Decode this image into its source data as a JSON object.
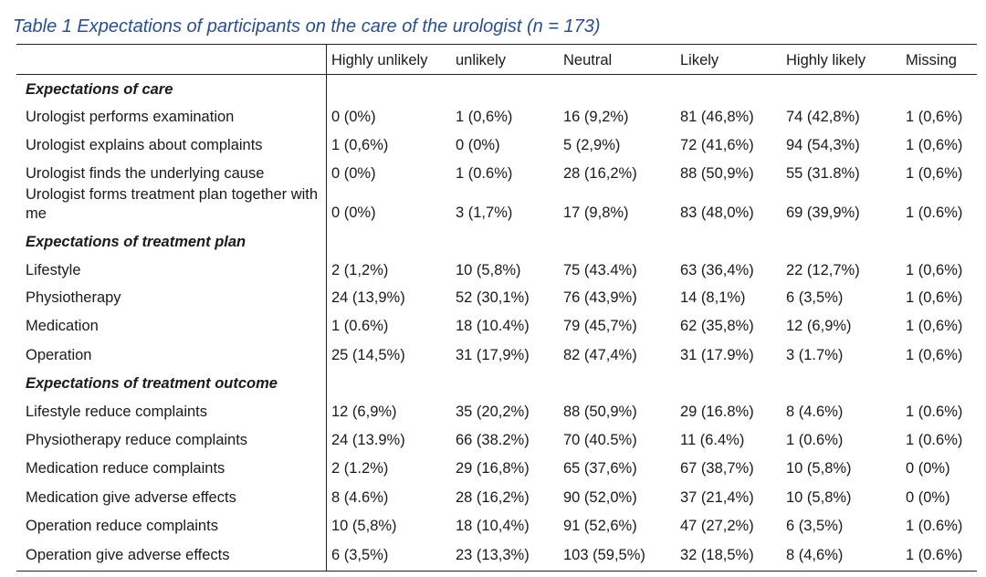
{
  "caption": "Table 1 Expectations of participants on the care of the urologist (n = 173)",
  "columns": [
    "Highly unlikely",
    "unlikely",
    "Neutral",
    "Likely",
    "Highly likely",
    "Missing"
  ],
  "rows": [
    {
      "type": "section",
      "label": "Expectations of care"
    },
    {
      "type": "data",
      "label": "Urologist performs examination",
      "values": [
        "0 (0%)",
        "1 (0,6%)",
        "16 (9,2%)",
        "81 (46,8%)",
        "74 (42,8%)",
        "1 (0,6%)"
      ]
    },
    {
      "type": "data",
      "label": "Urologist explains about complaints",
      "values": [
        "1 (0,6%)",
        "0 (0%)",
        "5 (2,9%)",
        "72 (41,6%)",
        "94 (54,3%)",
        "1 (0,6%)"
      ]
    },
    {
      "type": "data",
      "label": "Urologist finds the underlying cause",
      "values": [
        "0 (0%)",
        "1 (0.6%)",
        "28 (16,2%)",
        "88 (50,9%)",
        "55 (31.8%)",
        "1 (0,6%)"
      ]
    },
    {
      "type": "data2",
      "label": "Urologist forms treatment plan together with me",
      "values": [
        "0 (0%)",
        "3 (1,7%)",
        "17 (9,8%)",
        "83 (48,0%)",
        "69 (39,9%)",
        "1 (0.6%)"
      ]
    },
    {
      "type": "section",
      "label": "Expectations of treatment plan"
    },
    {
      "type": "data",
      "label": "Lifestyle",
      "values": [
        "2 (1,2%)",
        "10 (5,8%)",
        "75 (43.4%)",
        "63 (36,4%)",
        "22 (12,7%)",
        "1 (0,6%)"
      ]
    },
    {
      "type": "data",
      "label": "Physiotherapy",
      "values": [
        "24 (13,9%)",
        "52 (30,1%)",
        "76 (43,9%)",
        "14 (8,1%)",
        "6 (3,5%)",
        "1 (0,6%)"
      ]
    },
    {
      "type": "data",
      "label": "Medication",
      "values": [
        "1 (0.6%)",
        "18 (10.4%)",
        "79 (45,7%)",
        "62 (35,8%)",
        "12 (6,9%)",
        "1 (0,6%)"
      ]
    },
    {
      "type": "data",
      "label": "Operation",
      "values": [
        "25 (14,5%)",
        "31 (17,9%)",
        "82 (47,4%)",
        "31 (17.9%)",
        "3 (1.7%)",
        "1 (0,6%)"
      ]
    },
    {
      "type": "section",
      "label": "Expectations of treatment outcome"
    },
    {
      "type": "data",
      "label": "Lifestyle reduce complaints",
      "values": [
        "12 (6,9%)",
        "35 (20,2%)",
        "88 (50,9%)",
        "29 (16.8%)",
        "8 (4.6%)",
        "1 (0.6%)"
      ]
    },
    {
      "type": "data",
      "label": "Physiotherapy reduce complaints",
      "values": [
        "24 (13.9%)",
        "66 (38.2%)",
        "70 (40.5%)",
        "11 (6.4%)",
        "1 (0.6%)",
        "1 (0.6%)"
      ]
    },
    {
      "type": "data",
      "label": "Medication reduce complaints",
      "values": [
        "2 (1.2%)",
        "29 (16,8%)",
        "65 (37,6%)",
        "67 (38,7%)",
        "10 (5,8%)",
        "0 (0%)"
      ]
    },
    {
      "type": "data",
      "label": "Medication give adverse effects",
      "values": [
        "8 (4.6%)",
        "28 (16,2%)",
        "90 (52,0%)",
        "37 (21,4%)",
        "10 (5,8%)",
        "0 (0%)"
      ]
    },
    {
      "type": "data",
      "label": "Operation reduce complaints",
      "values": [
        "10 (5,8%)",
        "18 (10,4%)",
        "91 (52,6%)",
        "47 (27,2%)",
        "6 (3,5%)",
        "1 (0.6%)"
      ]
    },
    {
      "type": "data",
      "label": "Operation give adverse effects",
      "values": [
        "6 (3,5%)",
        "23 (13,3%)",
        "103 (59,5%)",
        "32 (18,5%)",
        "8 (4,6%)",
        "1 (0.6%)"
      ]
    }
  ]
}
